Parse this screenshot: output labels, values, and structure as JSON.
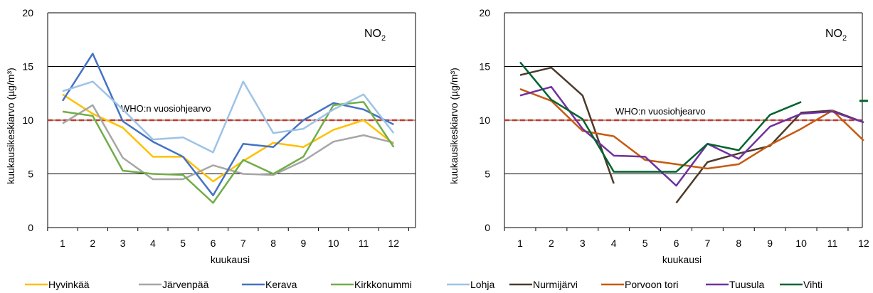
{
  "chart_data": [
    {
      "type": "line",
      "panel_label": "NO",
      "panel_label_sub": "2",
      "xlabel": "kuukausi",
      "ylabel": "kuukausikeskiarvo (µg/m³)",
      "ylim": [
        0,
        20
      ],
      "yticks": [
        "0",
        "5",
        "10",
        "15",
        "20"
      ],
      "categories": [
        "1",
        "2",
        "3",
        "4",
        "5",
        "6",
        "7",
        "8",
        "9",
        "10",
        "11",
        "12"
      ],
      "grid": "horizontal",
      "legend_position": "bottom",
      "reference": {
        "label": "WHO:n vuosiohjearvo",
        "value": 10,
        "color": "#c0392b"
      },
      "series": [
        {
          "name": "Hyvinkää",
          "color": "#ffc000",
          "values": [
            12.4,
            10.6,
            9.3,
            6.6,
            6.6,
            4.3,
            6.2,
            7.9,
            7.5,
            9.1,
            10.0,
            7.8
          ]
        },
        {
          "name": "Järvenpää",
          "color": "#a6a6a6",
          "values": [
            9.7,
            11.4,
            6.5,
            4.5,
            4.5,
            5.8,
            5.0,
            4.9,
            6.2,
            8.0,
            8.6,
            7.9
          ]
        },
        {
          "name": "Kerava",
          "color": "#4472c4",
          "values": [
            11.8,
            16.2,
            9.9,
            8.0,
            6.6,
            3.0,
            7.8,
            7.5,
            10.0,
            11.6,
            11.0,
            9.6
          ]
        },
        {
          "name": "Kirkkonummi",
          "color": "#70ad47",
          "values": [
            10.8,
            10.4,
            5.3,
            5.0,
            4.9,
            2.3,
            6.3,
            5.0,
            6.6,
            11.4,
            11.7,
            7.5
          ]
        },
        {
          "name": "Lohja",
          "color": "#9dc3e6",
          "values": [
            12.7,
            13.6,
            11.0,
            8.2,
            8.4,
            7.0,
            13.6,
            8.8,
            9.2,
            11.0,
            12.4,
            8.8
          ]
        }
      ]
    },
    {
      "type": "line",
      "panel_label": "NO",
      "panel_label_sub": "2",
      "xlabel": "kuukausi",
      "ylabel": "kuukausikeskiarvo (µg/m³)",
      "ylim": [
        0,
        20
      ],
      "yticks": [
        "0",
        "5",
        "10",
        "15",
        "20"
      ],
      "categories": [
        "1",
        "2",
        "3",
        "4",
        "5",
        "6",
        "7",
        "8",
        "9",
        "10",
        "11",
        "12"
      ],
      "grid": "horizontal",
      "legend_position": "bottom",
      "reference": {
        "label": "WHO:n vuosiohjearvo",
        "value": 10,
        "color": "#c0392b"
      },
      "series": [
        {
          "name": "Nurmijärvi",
          "color": "#4d3a2a",
          "values": [
            14.2,
            14.9,
            12.3,
            4.1,
            null,
            2.3,
            6.1,
            6.9,
            7.6,
            10.7,
            10.9,
            9.8
          ]
        },
        {
          "name": "Porvoon tori",
          "color": "#c55a11",
          "values": [
            12.9,
            11.8,
            9.0,
            8.5,
            6.3,
            5.9,
            5.5,
            5.9,
            7.7,
            9.2,
            10.9,
            8.1
          ]
        },
        {
          "name": "Tuusula",
          "color": "#7030a0",
          "values": [
            12.3,
            13.1,
            9.2,
            6.7,
            6.6,
            3.9,
            7.8,
            6.4,
            9.4,
            10.6,
            10.8,
            9.8
          ]
        },
        {
          "name": "Vihti",
          "color": "#00642e",
          "values": [
            15.4,
            11.9,
            10.1,
            5.2,
            5.2,
            5.2,
            7.8,
            7.2,
            10.5,
            11.7,
            null,
            11.8
          ]
        }
      ]
    }
  ]
}
